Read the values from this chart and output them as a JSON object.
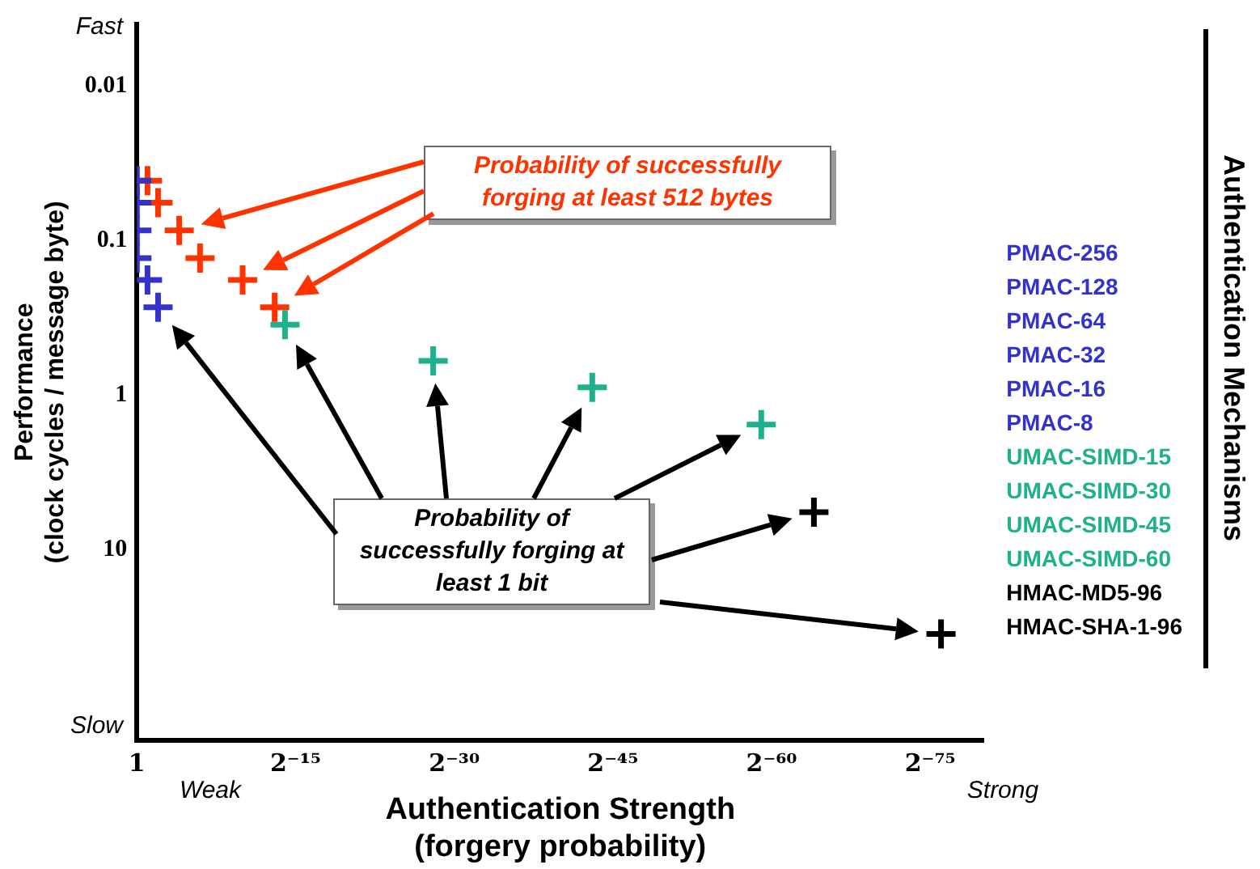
{
  "chart_data": {
    "type": "scatter",
    "xlabel": "Authentication Strength\n(forgery probability)",
    "ylabel": "Performance\n(clock cycles / message byte)",
    "legend_title": "Authentication Mechanisms",
    "legend": "right",
    "marker": "cross",
    "grid": false,
    "log": "xy",
    "xlim": [
      1,
      8.27e-25
    ],
    "xticks": [
      1,
      {
        "value": 3.0517578125e-05,
        "label": "2⁻¹⁵"
      },
      {
        "value": 9.313225746154785e-10,
        "label": "2⁻³⁰"
      },
      {
        "value": 2.842170943040401e-14,
        "label": "2⁻⁴⁵"
      },
      {
        "value": 8.673617379884035e-19,
        "label": "2⁻⁶⁰"
      },
      {
        "value": 2.6469779601696886e-23,
        "label": "2⁻⁷⁵"
      }
    ],
    "ylim": [
      170,
      0.004
    ],
    "yticks": [
      0.01,
      0.1,
      1,
      10
    ],
    "annotations": [
      "Probability of successfully forging at least 512 bytes",
      "Probability of successfully forging at least 1 bit",
      "Fast",
      "Slow",
      "Weak",
      "Strong"
    ],
    "series": [
      {
        "name": "PMAC-256",
        "color": "#3333cc",
        "x": [
          1
        ],
        "values": [
          0.041
        ]
      },
      {
        "name": "PMAC-128",
        "color": "#3333cc",
        "x": [
          1
        ],
        "values": [
          0.057
        ]
      },
      {
        "name": "PMAC-64",
        "color": "#3333cc",
        "x": [
          1
        ],
        "values": [
          0.086
        ]
      },
      {
        "name": "PMAC-32",
        "color": "#3333cc",
        "x": [
          1
        ],
        "values": [
          0.13
        ]
      },
      {
        "name": "PMAC-16",
        "color": "#3333cc",
        "x": [
          0.5
        ],
        "values": [
          0.18
        ]
      },
      {
        "name": "PMAC-8",
        "color": "#3333cc",
        "x": [
          0.25
        ],
        "values": [
          0.27
        ]
      },
      {
        "name": "UMAC-SIMD-15",
        "color": "#1fb08c",
        "x": [
          6.1e-05
        ],
        "values": [
          0.35
        ]
      },
      {
        "name": "UMAC-SIMD-30",
        "color": "#1fb08c",
        "x": [
          3.7e-09
        ],
        "values": [
          0.6
        ]
      },
      {
        "name": "UMAC-SIMD-45",
        "color": "#1fb08c",
        "x": [
          1.1e-13
        ],
        "values": [
          0.89
        ]
      },
      {
        "name": "UMAC-SIMD-60",
        "color": "#1fb08c",
        "x": [
          1.7e-18
        ],
        "values": [
          1.55
        ]
      },
      {
        "name": "HMAC-MD5-96",
        "color": "#000000",
        "x": [
          5.4e-20
        ],
        "values": [
          5.7
        ]
      },
      {
        "name": "HMAC-SHA-1-96",
        "color": "#000000",
        "x": [
          1.3e-23
        ],
        "values": [
          35
        ]
      },
      {
        "color": "#ff3300",
        "x": [
          0.5,
          0.25,
          0.0625,
          0.016,
          0.00098,
          0.00012
        ],
        "values": [
          0.041,
          0.057,
          0.086,
          0.13,
          0.18,
          0.27
        ]
      }
    ]
  }
}
